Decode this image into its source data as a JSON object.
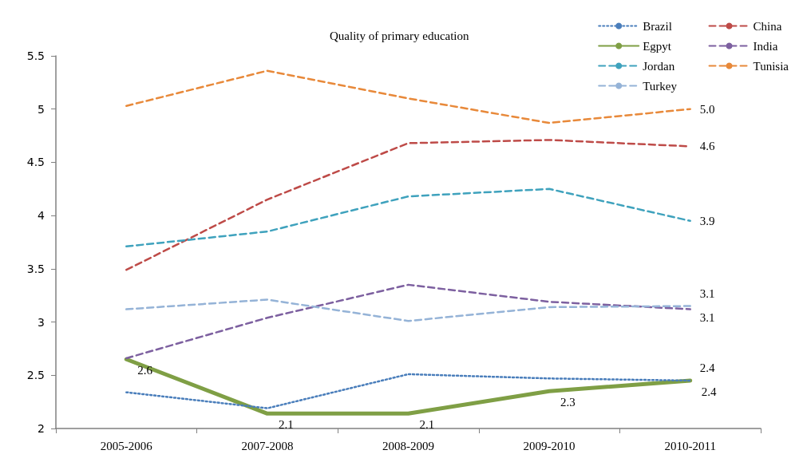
{
  "chart_data": {
    "type": "line",
    "title": "Quality of primary education",
    "categories": [
      "2005-2006",
      "2007-2008",
      "2008-2009",
      "2009-2010",
      "2010-2011"
    ],
    "ylim": [
      2,
      5.5
    ],
    "yticks": [
      2,
      2.5,
      3,
      3.5,
      4,
      4.5,
      5,
      5.5
    ],
    "grid": false,
    "legend": "top right",
    "marker": "none",
    "series": [
      {
        "name": "Brazil",
        "color": "#4a7ebb",
        "line_style": "dotted",
        "values": [
          2.34,
          2.19,
          2.51,
          2.47,
          2.45
        ],
        "value_labels": [
          null,
          null,
          null,
          null,
          "2.4"
        ]
      },
      {
        "name": "China",
        "color": "#be4b48",
        "line_style": "dashed",
        "values": [
          3.49,
          4.15,
          4.68,
          4.71,
          4.65
        ],
        "value_labels": [
          null,
          null,
          null,
          null,
          "4.6"
        ]
      },
      {
        "name": "Egpyt",
        "color": "#7f9f45",
        "line_style": "solid",
        "values": [
          2.65,
          2.14,
          2.14,
          2.35,
          2.45
        ],
        "value_labels": [
          "2.6",
          "2.1",
          "2.1",
          "2.3",
          "2.4"
        ]
      },
      {
        "name": "India",
        "color": "#7d60a0",
        "line_style": "dashed",
        "values": [
          2.66,
          3.04,
          3.35,
          3.19,
          3.12
        ],
        "value_labels": [
          null,
          null,
          null,
          null,
          "3.1"
        ]
      },
      {
        "name": "Jordan",
        "color": "#3fa2bd",
        "line_style": "dashed",
        "values": [
          3.71,
          3.85,
          4.18,
          4.25,
          3.95
        ],
        "value_labels": [
          null,
          null,
          null,
          null,
          "3.9"
        ]
      },
      {
        "name": "Tunisia",
        "color": "#e8893a",
        "line_style": "dashed",
        "values": [
          5.03,
          5.36,
          5.1,
          4.87,
          5.0
        ],
        "value_labels": [
          null,
          null,
          null,
          null,
          "5.0"
        ]
      },
      {
        "name": "Turkey",
        "color": "#95b3d7",
        "line_style": "dashed",
        "values": [
          3.12,
          3.21,
          3.01,
          3.14,
          3.15
        ],
        "value_labels": [
          null,
          null,
          null,
          null,
          "3.1"
        ]
      }
    ]
  }
}
